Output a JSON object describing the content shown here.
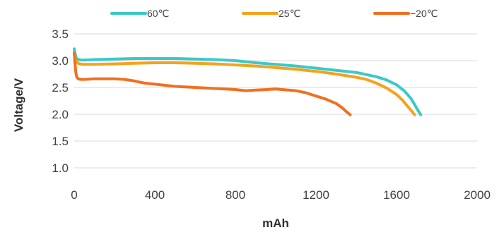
{
  "chart_data": {
    "type": "line",
    "title": "",
    "xlabel": "mAh",
    "ylabel": "Voltage/V",
    "xlim": [
      0,
      2000
    ],
    "ylim": [
      1.0,
      3.5
    ],
    "xticks": [
      0,
      400,
      800,
      1200,
      1600,
      2000
    ],
    "xtick_labels": [
      "0",
      "400",
      "800",
      "1200",
      "1600",
      "2000"
    ],
    "yticks": [
      1.0,
      1.5,
      2.0,
      2.5,
      3.0,
      3.5
    ],
    "ytick_labels": [
      "1.0",
      "1.5",
      "2.0",
      "2.5",
      "3.0",
      "3.5"
    ],
    "grid": "horizontal",
    "legend_position": "top",
    "series": [
      {
        "name": "60℃",
        "color": "#3cc8c8",
        "x": [
          0,
          5,
          10,
          20,
          40,
          100,
          200,
          300,
          400,
          500,
          600,
          700,
          800,
          900,
          1000,
          1100,
          1200,
          1300,
          1400,
          1500,
          1550,
          1600,
          1640,
          1670,
          1690,
          1705,
          1720
        ],
        "y": [
          3.22,
          3.12,
          3.05,
          3.02,
          3.01,
          3.02,
          3.03,
          3.04,
          3.04,
          3.04,
          3.03,
          3.02,
          3.0,
          2.96,
          2.93,
          2.9,
          2.86,
          2.82,
          2.78,
          2.7,
          2.64,
          2.55,
          2.43,
          2.3,
          2.18,
          2.08,
          1.99
        ]
      },
      {
        "name": "25℃",
        "color": "#f5a21c",
        "x": [
          0,
          5,
          10,
          20,
          40,
          100,
          200,
          300,
          400,
          500,
          600,
          700,
          800,
          900,
          1000,
          1100,
          1200,
          1300,
          1400,
          1450,
          1500,
          1550,
          1600,
          1630,
          1650,
          1670,
          1690
        ],
        "y": [
          3.15,
          3.05,
          2.98,
          2.95,
          2.93,
          2.93,
          2.94,
          2.95,
          2.96,
          2.96,
          2.95,
          2.94,
          2.92,
          2.9,
          2.87,
          2.84,
          2.8,
          2.75,
          2.69,
          2.65,
          2.58,
          2.49,
          2.37,
          2.26,
          2.17,
          2.08,
          1.99
        ]
      },
      {
        "name": "−20℃",
        "color": "#f07020",
        "x": [
          0,
          4,
          8,
          12,
          20,
          30,
          50,
          100,
          150,
          200,
          250,
          300,
          350,
          400,
          500,
          600,
          700,
          800,
          850,
          900,
          1000,
          1100,
          1150,
          1200,
          1250,
          1300,
          1330,
          1350,
          1370
        ],
        "y": [
          3.15,
          2.95,
          2.78,
          2.7,
          2.66,
          2.65,
          2.65,
          2.66,
          2.66,
          2.66,
          2.65,
          2.62,
          2.58,
          2.56,
          2.52,
          2.5,
          2.48,
          2.46,
          2.44,
          2.45,
          2.47,
          2.44,
          2.4,
          2.34,
          2.28,
          2.2,
          2.12,
          2.05,
          1.99
        ]
      }
    ]
  }
}
